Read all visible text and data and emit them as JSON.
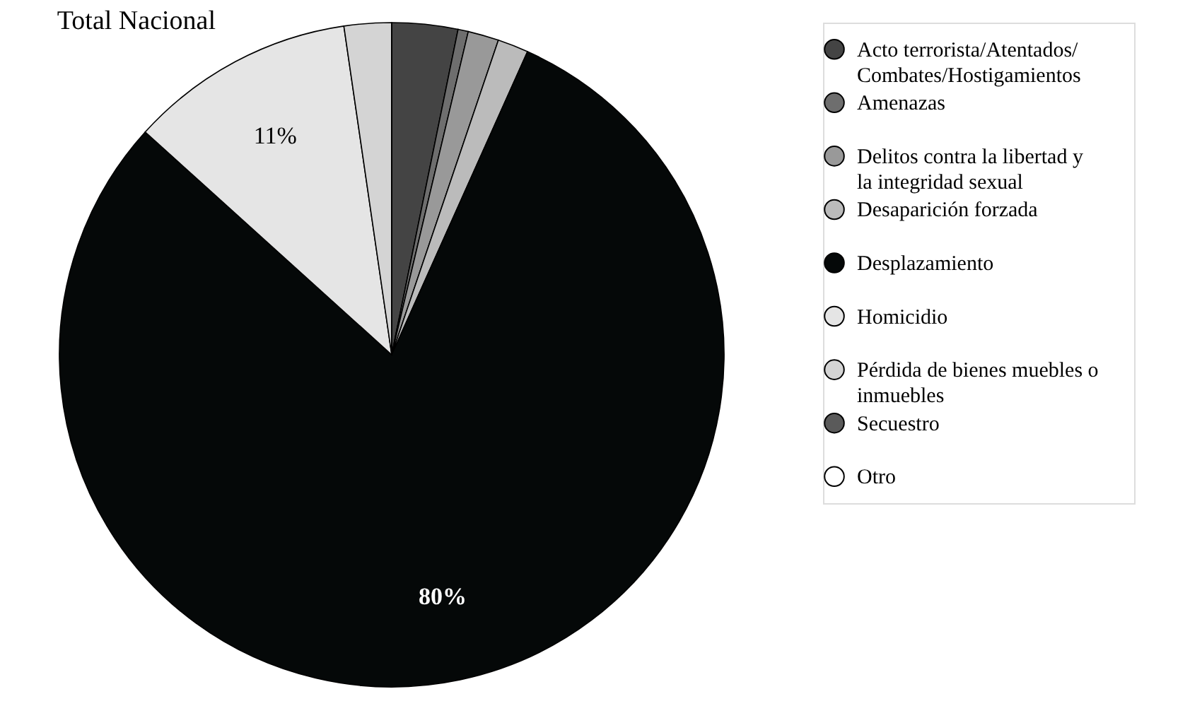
{
  "chart_data": {
    "type": "pie",
    "title": "Total Nacional",
    "categories": [
      "Acto terrorista/Atentados/Combates/Hostigamientos",
      "Amenazas",
      "Delitos contra la libertad y la integridad sexual",
      "Desaparición forzada",
      "Desplazamiento",
      "Homicidio",
      "Pérdida de bienes muebles o inmuebles",
      "Secuestro",
      "Otro"
    ],
    "values": [
      3.2,
      0.5,
      1.5,
      1.5,
      80,
      11,
      2.3,
      0,
      0
    ],
    "colors": [
      "#444444",
      "#6e6e6e",
      "#999999",
      "#bbbbbb",
      "#050808",
      "#e5e5e5",
      "#d4d4d4",
      "#5a5a5a",
      "#ffffff"
    ],
    "value_labels": [
      null,
      null,
      null,
      null,
      "80%",
      "11%",
      null,
      null,
      null
    ],
    "legend": "right"
  }
}
